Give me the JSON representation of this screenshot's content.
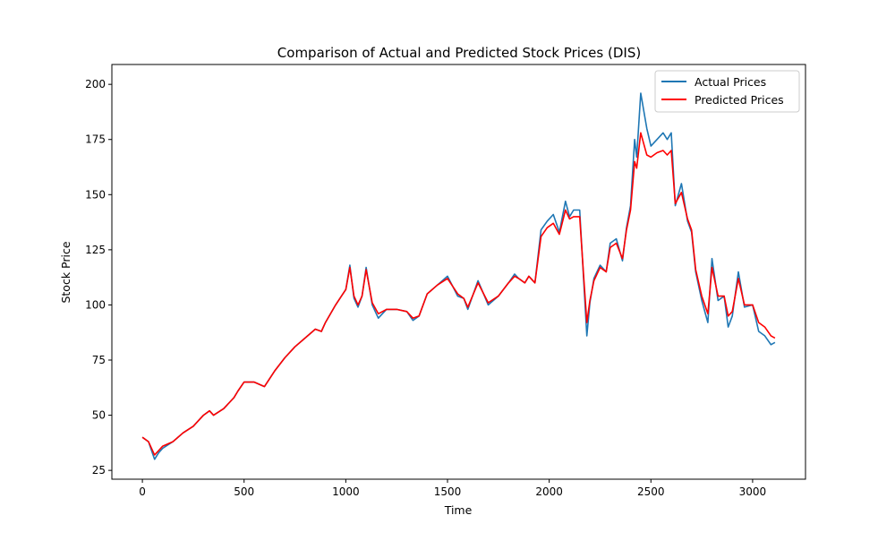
{
  "chart_data": {
    "type": "line",
    "title": "Comparison of Actual and Predicted Stock Prices (DIS)",
    "xlabel": "Time",
    "ylabel": "Stock Price",
    "xlim": [
      -150,
      3260
    ],
    "ylim": [
      21,
      209
    ],
    "x_ticks": [
      0,
      500,
      1000,
      1500,
      2000,
      2500,
      3000
    ],
    "y_ticks": [
      25,
      50,
      75,
      100,
      125,
      150,
      175,
      200
    ],
    "grid": false,
    "legend_position": "top-right",
    "x": [
      0,
      30,
      60,
      80,
      100,
      150,
      200,
      250,
      300,
      330,
      350,
      400,
      450,
      470,
      500,
      550,
      600,
      650,
      700,
      750,
      800,
      850,
      880,
      900,
      950,
      1000,
      1020,
      1040,
      1060,
      1080,
      1100,
      1130,
      1160,
      1200,
      1250,
      1300,
      1330,
      1360,
      1400,
      1450,
      1500,
      1550,
      1580,
      1600,
      1650,
      1700,
      1750,
      1800,
      1830,
      1850,
      1880,
      1900,
      1930,
      1960,
      1990,
      2020,
      2050,
      2080,
      2100,
      2120,
      2150,
      2170,
      2185,
      2200,
      2220,
      2250,
      2280,
      2300,
      2330,
      2360,
      2380,
      2400,
      2420,
      2430,
      2450,
      2480,
      2500,
      2530,
      2560,
      2580,
      2600,
      2620,
      2650,
      2680,
      2700,
      2720,
      2750,
      2780,
      2800,
      2830,
      2860,
      2880,
      2900,
      2930,
      2960,
      3000,
      3030,
      3060,
      3090,
      3110
    ],
    "series": [
      {
        "name": "Actual Prices",
        "color": "#1f77b4",
        "values": [
          40,
          38,
          30,
          33,
          35,
          38,
          42,
          45,
          50,
          52,
          50,
          53,
          58,
          61,
          65,
          65,
          63,
          70,
          76,
          81,
          85,
          89,
          88,
          92,
          100,
          107,
          118,
          103,
          99,
          104,
          117,
          100,
          94,
          98,
          98,
          97,
          93,
          95,
          105,
          109,
          113,
          104,
          103,
          98,
          111,
          100,
          104,
          110,
          114,
          112,
          110,
          113,
          110,
          134,
          138,
          141,
          133,
          147,
          140,
          143,
          143,
          110,
          86,
          101,
          112,
          118,
          115,
          128,
          130,
          120,
          135,
          145,
          175,
          167,
          196,
          180,
          172,
          175,
          178,
          175,
          178,
          145,
          155,
          138,
          133,
          115,
          102,
          92,
          121,
          102,
          104,
          90,
          95,
          115,
          99,
          100,
          88,
          86,
          82,
          83
        ]
      },
      {
        "name": "Predicted Prices",
        "color": "#ff0000",
        "values": [
          40,
          38,
          32,
          34,
          36,
          38,
          42,
          45,
          50,
          52,
          50,
          53,
          58,
          61,
          65,
          65,
          63,
          70,
          76,
          81,
          85,
          89,
          88,
          92,
          100,
          107,
          117,
          104,
          100,
          104,
          116,
          101,
          96,
          98,
          98,
          97,
          94,
          95,
          105,
          109,
          112,
          105,
          103,
          99,
          110,
          101,
          104,
          110,
          113,
          112,
          110,
          113,
          110,
          131,
          135,
          137,
          132,
          143,
          139,
          140,
          140,
          112,
          92,
          102,
          111,
          117,
          115,
          126,
          128,
          121,
          134,
          143,
          165,
          162,
          178,
          168,
          167,
          169,
          170,
          168,
          170,
          146,
          151,
          139,
          134,
          116,
          104,
          96,
          117,
          104,
          104,
          95,
          97,
          112,
          100,
          100,
          92,
          90,
          86,
          85
        ]
      }
    ]
  }
}
